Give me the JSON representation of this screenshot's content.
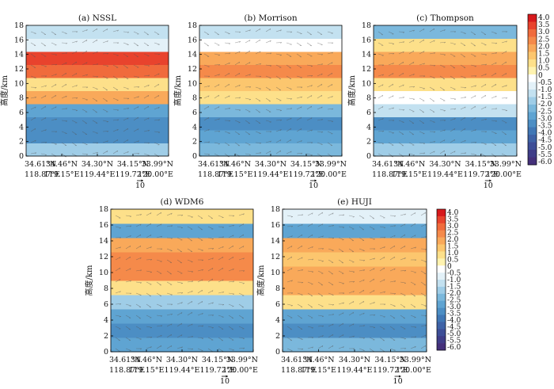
{
  "chart_data": {
    "type": "heatmap",
    "y_ticks": [
      "0",
      "2",
      "4",
      "6",
      "8",
      "10",
      "12",
      "14",
      "16",
      "18"
    ],
    "ylim": [
      0,
      18
    ],
    "ylabel": "高度/km",
    "x_ticks": [
      {
        "lat": "34.61°N",
        "lon": "118.87°E"
      },
      {
        "lat": "34.46°N",
        "lon": "119.15°E"
      },
      {
        "lat": "34.30°N",
        "lon": "119.44°E"
      },
      {
        "lat": "34.15°N",
        "lon": "119.72°E"
      },
      {
        "lat": "33.99°N",
        "lon": "120.00°E"
      }
    ],
    "vector_scale_label": "10",
    "colorbar": {
      "levels": [
        "4.0",
        "3.5",
        "3.0",
        "2.5",
        "2.0",
        "1.5",
        "1.0",
        "0.5",
        "0",
        "-0.5",
        "-1.0",
        "-1.5",
        "-2.0",
        "-2.5",
        "-3.0",
        "-3.5",
        "-4.0",
        "-4.5",
        "-5.0",
        "-5.5",
        "-6.0"
      ],
      "colors": [
        "#d7191c",
        "#e8432d",
        "#f06b3c",
        "#f58a4a",
        "#f9a95a",
        "#fcc66e",
        "#fde08a",
        "#fff3b0",
        "#ffffff",
        "#e3f1f8",
        "#c3e1f0",
        "#9fcde7",
        "#7bb8dc",
        "#5fa4d2",
        "#4c8ec4",
        "#4077b5",
        "#3e62a6",
        "#3d4e97",
        "#3f3d88",
        "#44307a"
      ]
    },
    "panels": [
      {
        "title": "(a) NSSL",
        "rows_low_to_high": [
          -2.0,
          -3.5,
          -3.5,
          -3.0,
          1.5,
          0.5,
          2.5,
          3.0,
          -1.0,
          -1.5
        ]
      },
      {
        "title": "(b) Morrison",
        "rows_low_to_high": [
          -2.5,
          -3.0,
          -3.5,
          -2.5,
          0.5,
          1.0,
          2.0,
          1.5,
          -0.5,
          -1.5
        ]
      },
      {
        "title": "(c) Thompson",
        "rows_low_to_high": [
          -2.0,
          -3.0,
          -3.5,
          -1.5,
          -0.5,
          0.5,
          2.0,
          1.5,
          0.5,
          -2.5
        ]
      },
      {
        "title": "(d) WDM6",
        "rows_low_to_high": [
          -3.0,
          -3.5,
          -3.0,
          -2.0,
          0.5,
          2.0,
          2.0,
          1.5,
          -3.0,
          0.5
        ]
      },
      {
        "title": "(e) HUJI",
        "rows_low_to_high": [
          -2.5,
          -3.5,
          -3.0,
          0.5,
          1.5,
          1.5,
          1.0,
          1.5,
          -3.0,
          -1.0
        ]
      }
    ]
  }
}
